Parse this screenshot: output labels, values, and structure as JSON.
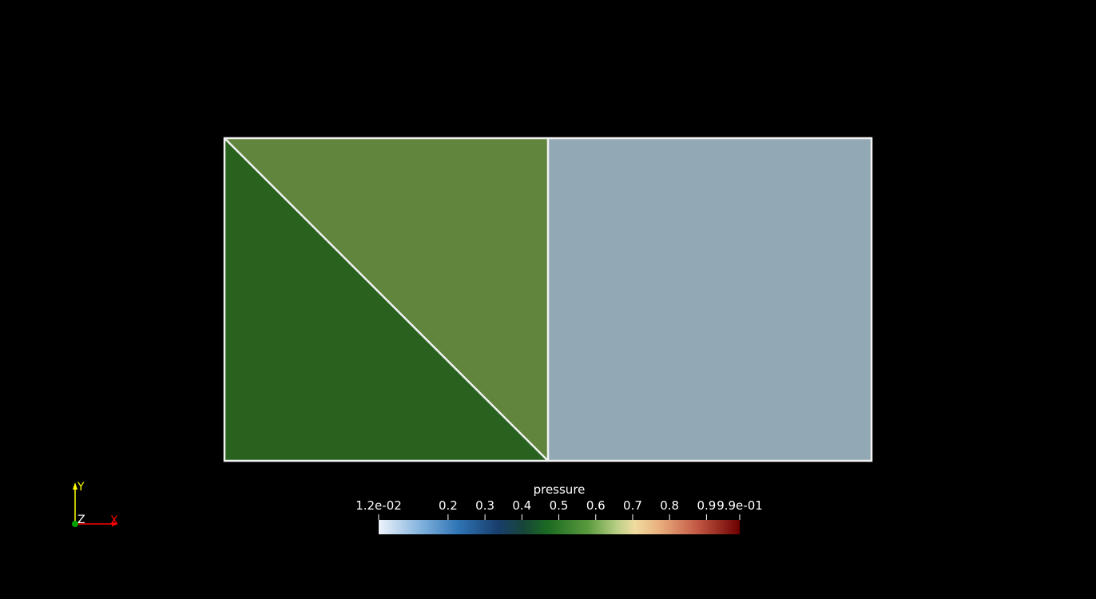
{
  "colorbar": {
    "title": "pressure",
    "min_label": "1.2e-02",
    "max_label": "9.9e-01",
    "range": [
      0.012,
      0.99
    ],
    "ticks": [
      {
        "value": 0.012,
        "label": "1.2e-02"
      },
      {
        "value": 0.2,
        "label": "0.2"
      },
      {
        "value": 0.3,
        "label": "0.3"
      },
      {
        "value": 0.4,
        "label": "0.4"
      },
      {
        "value": 0.5,
        "label": "0.5"
      },
      {
        "value": 0.6,
        "label": "0.6"
      },
      {
        "value": 0.7,
        "label": "0.7"
      },
      {
        "value": 0.8,
        "label": "0.8"
      },
      {
        "value": 0.9,
        "label": "0.9"
      },
      {
        "value": 0.99,
        "label": "9.9e-01"
      }
    ],
    "stops": [
      {
        "value": 0.0,
        "color": "#eef3fb"
      },
      {
        "value": 0.12,
        "color": "#7fb0dc"
      },
      {
        "value": 0.22,
        "color": "#2f74b4"
      },
      {
        "value": 0.33,
        "color": "#183e6c"
      },
      {
        "value": 0.4,
        "color": "#17453a"
      },
      {
        "value": 0.47,
        "color": "#1c6b22"
      },
      {
        "value": 0.58,
        "color": "#5a9a3e"
      },
      {
        "value": 0.66,
        "color": "#b9cf86"
      },
      {
        "value": 0.71,
        "color": "#f0dca0"
      },
      {
        "value": 0.78,
        "color": "#e8ad7c"
      },
      {
        "value": 0.88,
        "color": "#c45a45"
      },
      {
        "value": 1.0,
        "color": "#6b0000"
      }
    ]
  },
  "mesh": {
    "cells": [
      {
        "name": "lower-triangle",
        "color": "#28621e"
      },
      {
        "name": "upper-triangle",
        "color": "#61853d"
      },
      {
        "name": "right-square",
        "color": "#93a8b5"
      }
    ],
    "edge_color": "#f2f2f2"
  },
  "axes": {
    "x_label": "X",
    "y_label": "Y",
    "z_label": "Z",
    "x_color": "#ff0000",
    "y_color": "#ffff00",
    "z_color": "#00a000"
  }
}
